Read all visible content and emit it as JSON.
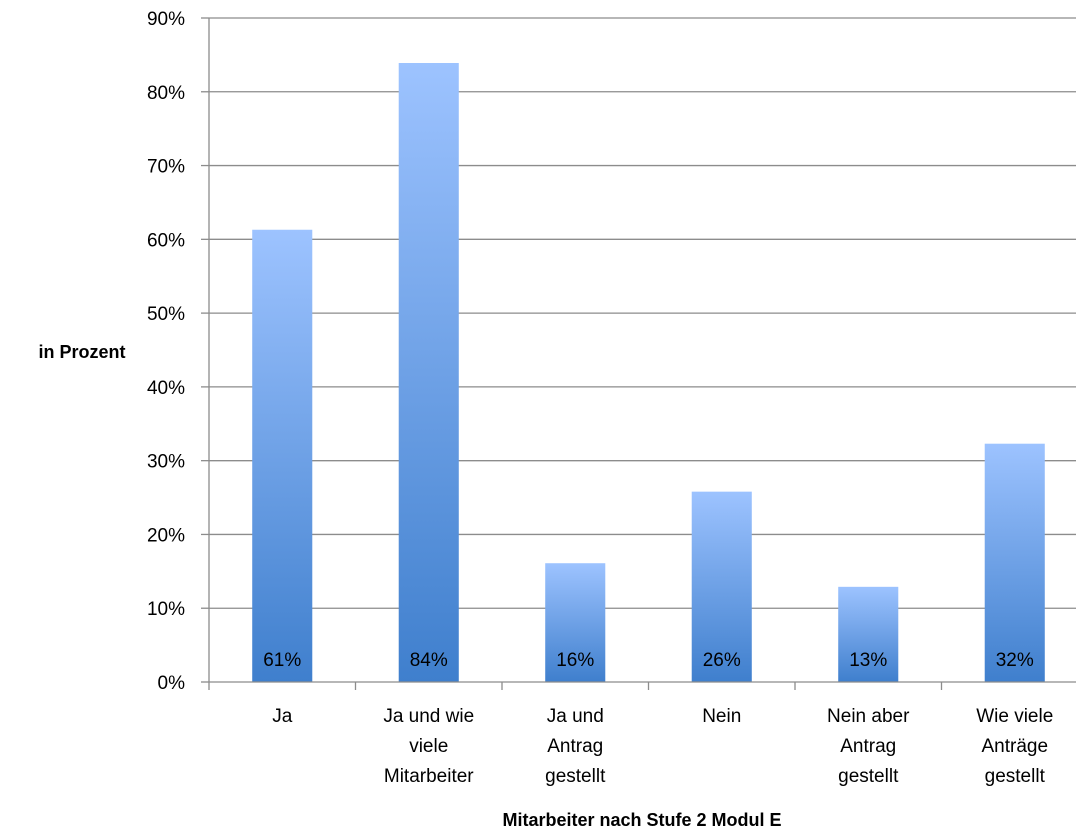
{
  "chart_data": {
    "type": "bar",
    "categories": [
      [
        "Ja"
      ],
      [
        "Ja und wie",
        "viele",
        "Mitarbeiter"
      ],
      [
        "Ja und",
        "Antrag",
        "gestellt"
      ],
      [
        "Nein"
      ],
      [
        "Nein aber",
        "Antrag",
        "gestellt"
      ],
      [
        "Wie viele",
        "Anträge",
        "gestellt"
      ]
    ],
    "values": [
      61.3,
      83.9,
      16.1,
      25.8,
      12.9,
      32.3
    ],
    "data_labels": [
      "61%",
      "84%",
      "16%",
      "26%",
      "13%",
      "32%"
    ],
    "yticks": [
      "0%",
      "10%",
      "20%",
      "30%",
      "40%",
      "50%",
      "60%",
      "70%",
      "80%",
      "90%"
    ],
    "ylim": [
      0,
      90
    ],
    "xlabel": "Mitarbeiter nach Stufe 2 Modul E",
    "ylabel": "in Prozent",
    "grid": true,
    "colors": {
      "bar_top": "#9dc3ff",
      "bar_bottom": "#3f7fcd",
      "grid": "#8c8c8c",
      "axis": "#8c8c8c"
    }
  }
}
